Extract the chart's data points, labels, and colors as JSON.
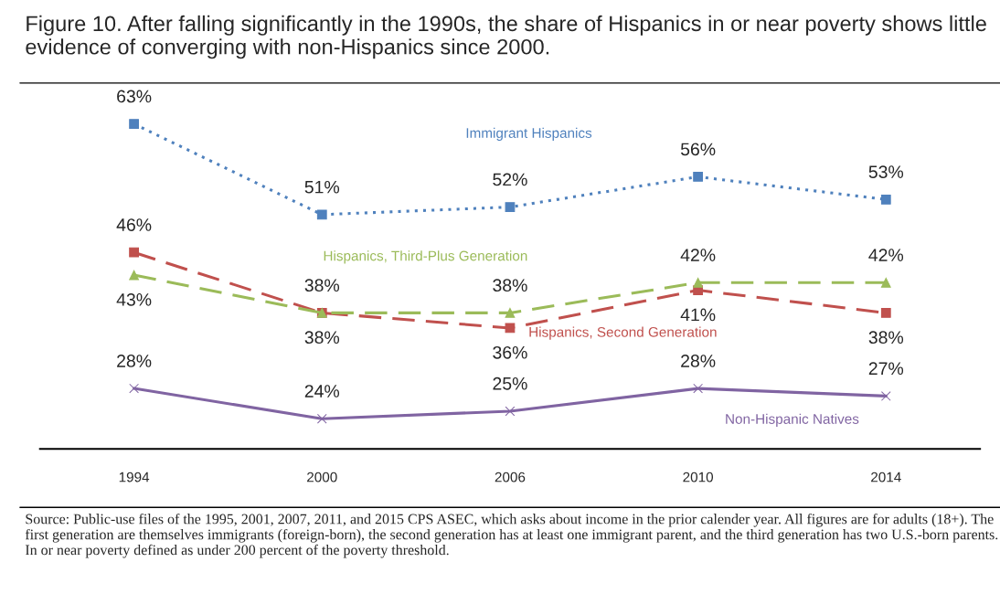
{
  "chart_data": {
    "type": "line",
    "title": "Figure 10. After falling significantly in the 1990s, the share of Hispanics in or near poverty shows little evidence of converging with non-Hispanics since 2000.",
    "categories": [
      "1994",
      "2000",
      "2006",
      "2010",
      "2014"
    ],
    "series": [
      {
        "name": "Immigrant Hispanics",
        "color": "#4f81bd",
        "values": [
          63,
          51,
          52,
          56,
          53
        ],
        "value_labels": [
          "63%",
          "51%",
          "52%",
          "56%",
          "53%"
        ],
        "marker": "square",
        "line_style": "dotted"
      },
      {
        "name": "Hispanics, Second Generation",
        "color": "#c0504d",
        "values": [
          46,
          38,
          36,
          41,
          38
        ],
        "value_labels": [
          "46%",
          "38%",
          "36%",
          "41%",
          "38%"
        ],
        "marker": "square",
        "line_style": "dashed"
      },
      {
        "name": "Hispanics, Third-Plus Generation",
        "color": "#9bbb59",
        "values": [
          43,
          38,
          38,
          42,
          42
        ],
        "value_labels": [
          "43%",
          "38%",
          "38%",
          "42%",
          "42%"
        ],
        "marker": "triangle",
        "line_style": "dashed"
      },
      {
        "name": "Non-Hispanic Natives",
        "color": "#8064a2",
        "values": [
          28,
          24,
          25,
          28,
          27
        ],
        "value_labels": [
          "28%",
          "24%",
          "25%",
          "28%",
          "27%"
        ],
        "marker": "cross",
        "line_style": "solid"
      }
    ],
    "ylim": [
      20,
      68
    ],
    "tick_labels": "x",
    "grid": false,
    "legend": false,
    "annotations": [
      "Source: Public-use files of the 1995, 2001, 2007, 2011, and 2015 CPS ASEC, which asks about income in the prior calender year. All figures are for adults (18+). The first generation are themselves immigrants (foreign-born), the second generation has at least one immigrant parent, and the third generation has two U.S.-born parents. In or near poverty defined as under 200 percent of the poverty threshold."
    ]
  }
}
